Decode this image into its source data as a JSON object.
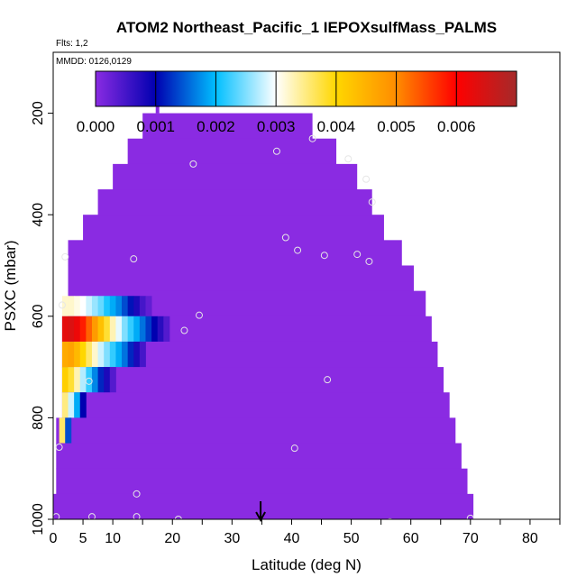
{
  "chart_data": {
    "type": "heatmap",
    "title": "ATOM2 Northeast_Pacific_1 IEPOXsulfMass_PALMS",
    "flights_label": "Flts: 1,2",
    "dates_label": "MMDD: 0126,0129",
    "xlabel": "Latitude (deg N)",
    "ylabel": "PSXC (mbar)",
    "xlim": [
      0,
      85
    ],
    "ylim": [
      1000,
      80
    ],
    "x_ticks": [
      0,
      5,
      10,
      20,
      30,
      40,
      50,
      60,
      70,
      80
    ],
    "x_tick_labels": [
      "0",
      "5",
      "10",
      "20",
      "30",
      "40",
      "50",
      "60",
      "70",
      "80"
    ],
    "y_ticks": [
      200,
      400,
      600,
      800,
      1000
    ],
    "y_tick_labels": [
      "200",
      "400",
      "600",
      "800",
      "1000"
    ],
    "colorbar": {
      "range": [
        0,
        0.007
      ],
      "ticks": [
        0,
        0.001,
        0.002,
        0.003,
        0.004,
        0.005,
        0.006
      ],
      "tick_labels": [
        "0.000",
        "0.001",
        "0.002",
        "0.003",
        "0.004",
        "0.005",
        "0.006"
      ],
      "colors": [
        "#8a2be2",
        "#0000b0",
        "#00bfff",
        "#ffffff",
        "#ffd700",
        "#ff8c00",
        "#ff0000",
        "#a52a2a"
      ]
    },
    "background_color": "#8a2be2",
    "arrow_latitude": 34.8,
    "domain_steps": [
      {
        "p_top": 200,
        "lat_min": 15.0,
        "lat_max": 43.5
      },
      {
        "p_top": 250,
        "lat_min": 12.5,
        "lat_max": 47.5
      },
      {
        "p_top": 300,
        "lat_min": 10.0,
        "lat_max": 51.0
      },
      {
        "p_top": 350,
        "lat_min": 7.5,
        "lat_max": 53.5
      },
      {
        "p_top": 400,
        "lat_min": 5.0,
        "lat_max": 55.5
      },
      {
        "p_top": 450,
        "lat_min": 2.5,
        "lat_max": 58.5
      },
      {
        "p_top": 500,
        "lat_min": 2.5,
        "lat_max": 60.5
      },
      {
        "p_top": 550,
        "lat_min": 2.5,
        "lat_max": 62.5
      },
      {
        "p_top": 600,
        "lat_min": 1.5,
        "lat_max": 63.5
      },
      {
        "p_top": 650,
        "lat_min": 1.5,
        "lat_max": 64.5
      },
      {
        "p_top": 700,
        "lat_min": 1.5,
        "lat_max": 65.5
      },
      {
        "p_top": 750,
        "lat_min": 1.5,
        "lat_max": 66.5
      },
      {
        "p_top": 800,
        "lat_min": 0.5,
        "lat_max": 67.5
      },
      {
        "p_top": 850,
        "lat_min": 0.5,
        "lat_max": 68.5
      },
      {
        "p_top": 900,
        "lat_min": 0.5,
        "lat_max": 69.5
      },
      {
        "p_top": 950,
        "lat_min": 0.0,
        "lat_max": 70.5
      }
    ],
    "column_spike": {
      "lat_min": 17.2,
      "lat_max": 17.8,
      "p_top": 165,
      "p_bottom": 200
    },
    "value_bands": [
      {
        "p_top": 560,
        "p_bottom": 600,
        "values": [
          0.0032,
          0.0032,
          0.0031,
          0.003,
          0.0028,
          0.0026,
          0.0024,
          0.0021,
          0.0019,
          0.0017,
          0.0014,
          0.0011,
          0.0008,
          0.0005,
          0.0003
        ]
      },
      {
        "p_top": 600,
        "p_bottom": 650,
        "values": [
          0.0063,
          0.0064,
          0.0062,
          0.0058,
          0.0053,
          0.0048,
          0.0043,
          0.0038,
          0.0033,
          0.0029,
          0.0025,
          0.0022,
          0.0019,
          0.0016,
          0.0013,
          0.001,
          0.0007,
          0.0004
        ]
      },
      {
        "p_top": 650,
        "p_bottom": 700,
        "values": [
          0.0046,
          0.0047,
          0.0044,
          0.004,
          0.0036,
          0.0032,
          0.0028,
          0.0025,
          0.0022,
          0.0019,
          0.0016,
          0.0012,
          0.0008,
          0.0005
        ]
      },
      {
        "p_top": 700,
        "p_bottom": 750,
        "values": [
          0.0041,
          0.0038,
          0.0033,
          0.0027,
          0.0022,
          0.0017,
          0.0012,
          0.0008,
          0.0004
        ]
      },
      {
        "p_top": 750,
        "p_bottom": 800,
        "values": [
          0.0035,
          0.0028,
          0.0019,
          0.001
        ]
      },
      {
        "p_top": 800,
        "p_bottom": 850,
        "values": [
          0.0036,
          0.0014
        ]
      }
    ],
    "value_band_lat_start": [
      1.5,
      1.5,
      1.5,
      1.5,
      1.5,
      1.0
    ],
    "value_band_lat_step": 1.0,
    "points": [
      {
        "lat": 23.5,
        "p": 300
      },
      {
        "lat": 37.5,
        "p": 275
      },
      {
        "lat": 43.5,
        "p": 250
      },
      {
        "lat": 49.5,
        "p": 290
      },
      {
        "lat": 52.5,
        "p": 330
      },
      {
        "lat": 53.5,
        "p": 375
      },
      {
        "lat": 39.0,
        "p": 445
      },
      {
        "lat": 41.0,
        "p": 470
      },
      {
        "lat": 45.5,
        "p": 480
      },
      {
        "lat": 51.0,
        "p": 478
      },
      {
        "lat": 53.0,
        "p": 492
      },
      {
        "lat": 2.0,
        "p": 483
      },
      {
        "lat": 13.5,
        "p": 487
      },
      {
        "lat": 1.5,
        "p": 578
      },
      {
        "lat": 24.5,
        "p": 598
      },
      {
        "lat": 22.0,
        "p": 628
      },
      {
        "lat": 6.0,
        "p": 728
      },
      {
        "lat": 46.0,
        "p": 725
      },
      {
        "lat": 1.0,
        "p": 858
      },
      {
        "lat": 40.5,
        "p": 860
      },
      {
        "lat": 14.0,
        "p": 950
      },
      {
        "lat": 0.5,
        "p": 995
      },
      {
        "lat": 6.5,
        "p": 995
      },
      {
        "lat": 14.0,
        "p": 995
      },
      {
        "lat": 21.0,
        "p": 1000
      },
      {
        "lat": 46.0,
        "p": 1010
      },
      {
        "lat": 52.0,
        "p": 1010
      },
      {
        "lat": 56.5,
        "p": 1005
      },
      {
        "lat": 70.0,
        "p": 998
      }
    ]
  }
}
